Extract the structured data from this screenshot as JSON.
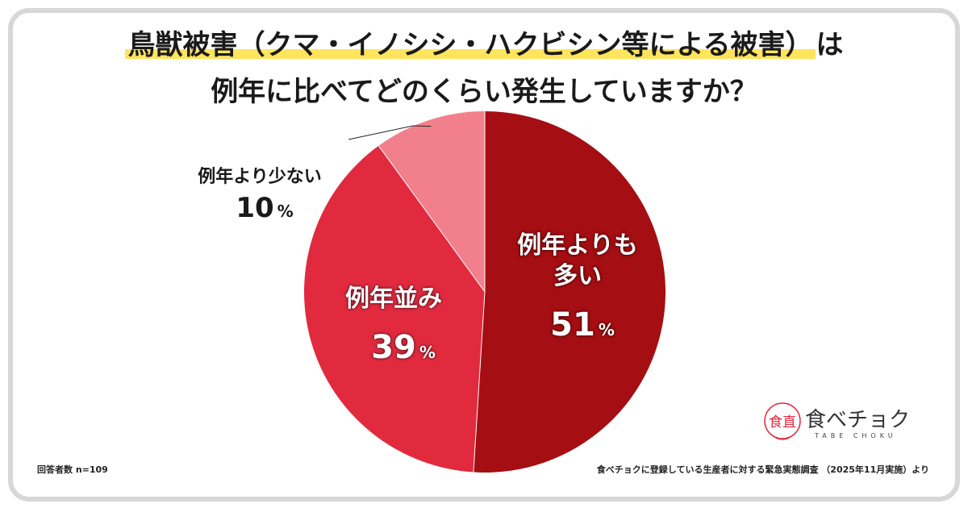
{
  "title": {
    "line1_highlight": "鳥獣被害（クマ・イノシシ・ハクビシン等による被害）",
    "line1_tail": "は",
    "line2": "例年に比べてどのくらい発生していますか？"
  },
  "chart_data": {
    "type": "pie",
    "slices": [
      {
        "label": "例年よりも多い",
        "label_line1": "例年よりも",
        "label_line2": "多い",
        "value": 51,
        "display": "51",
        "color": "#a50e12"
      },
      {
        "label": "例年並み",
        "value": 39,
        "display": "39",
        "color": "#e22a3f"
      },
      {
        "label": "例年より少ない",
        "value": 10,
        "display": "10",
        "color": "#f2808c"
      }
    ],
    "unit": "%",
    "start": "12 o'clock",
    "direction": "clockwise"
  },
  "footer": {
    "sample": "回答者数 n=109",
    "source": "食べチョクに登録している生産者に対する緊急実態調査 （2025年11月実施）より"
  },
  "logo": {
    "text": "食べチョク",
    "sub": "TABE CHOKU",
    "mark": "食直"
  }
}
